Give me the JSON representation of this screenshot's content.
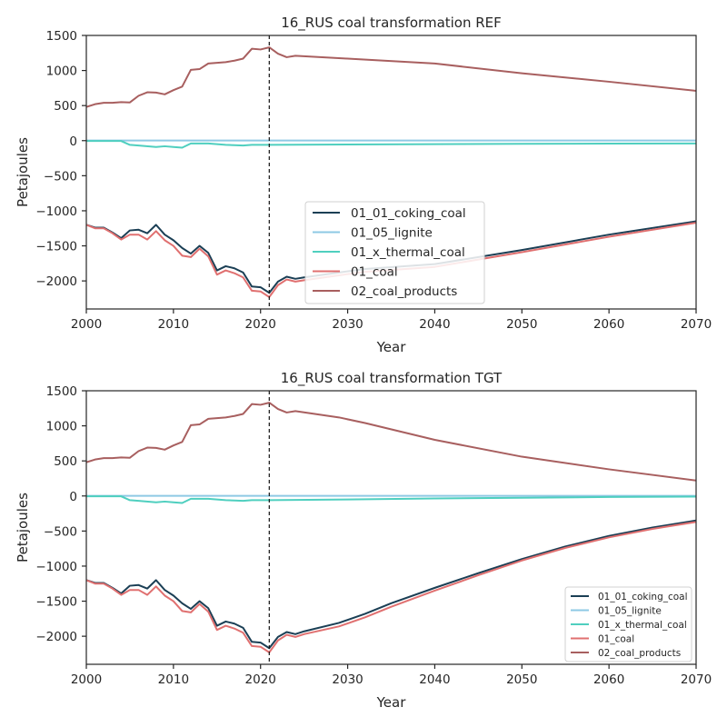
{
  "chart_data": [
    {
      "type": "line",
      "title": "16_RUS coal transformation REF",
      "xlabel": "Year",
      "ylabel": "Petajoules",
      "xlim": [
        2000,
        2070
      ],
      "ylim": [
        -2400,
        1500
      ],
      "xticks": [
        "2000",
        "2010",
        "2020",
        "2030",
        "2040",
        "2050",
        "2060",
        "2070"
      ],
      "yticks": [
        "−2000",
        "−1500",
        "−1000",
        "−500",
        "0",
        "500",
        "1000",
        "1500"
      ],
      "vline_x": 2021,
      "legend_position": "lower center",
      "legend": [
        "01_01_coking_coal",
        "01_05_lignite",
        "01_x_thermal_coal",
        "01_coal",
        "02_coal_products"
      ],
      "series": [
        {
          "name": "01_01_coking_coal",
          "color": "#1b3f55",
          "x": [
            2000,
            2001,
            2002,
            2003,
            2004,
            2005,
            2006,
            2007,
            2008,
            2009,
            2010,
            2011,
            2012,
            2013,
            2014,
            2015,
            2016,
            2017,
            2018,
            2019,
            2020,
            2021,
            2022,
            2023,
            2024,
            2025,
            2029,
            2032,
            2040,
            2050,
            2060,
            2070
          ],
          "y": [
            -1200,
            -1240,
            -1240,
            -1310,
            -1390,
            -1280,
            -1270,
            -1320,
            -1200,
            -1340,
            -1420,
            -1530,
            -1610,
            -1500,
            -1600,
            -1850,
            -1790,
            -1820,
            -1880,
            -2080,
            -2090,
            -2170,
            -2010,
            -1940,
            -1970,
            -1950,
            -1880,
            -1830,
            -1760,
            -1560,
            -1340,
            -1150
          ]
        },
        {
          "name": "01_05_lignite",
          "color": "#8ec9e4",
          "x": [
            2000,
            2021,
            2070
          ],
          "y": [
            2,
            2,
            2
          ]
        },
        {
          "name": "01_x_thermal_coal",
          "color": "#4fcfbf",
          "x": [
            2000,
            2004,
            2005,
            2006,
            2008,
            2009,
            2010,
            2011,
            2012,
            2014,
            2016,
            2017,
            2018,
            2019,
            2020,
            2021,
            2030,
            2040,
            2050,
            2060,
            2070
          ],
          "y": [
            -5,
            -5,
            -60,
            -70,
            -90,
            -80,
            -90,
            -100,
            -40,
            -40,
            -60,
            -65,
            -70,
            -60,
            -60,
            -60,
            -55,
            -50,
            -45,
            -42,
            -40
          ]
        },
        {
          "name": "01_coal",
          "color": "#e07070",
          "x": [
            2000,
            2001,
            2002,
            2003,
            2004,
            2005,
            2006,
            2007,
            2008,
            2009,
            2010,
            2011,
            2012,
            2013,
            2014,
            2015,
            2016,
            2017,
            2018,
            2019,
            2020,
            2021,
            2022,
            2023,
            2024,
            2025,
            2029,
            2032,
            2040,
            2050,
            2060,
            2070
          ],
          "y": [
            -1200,
            -1250,
            -1250,
            -1320,
            -1410,
            -1340,
            -1340,
            -1410,
            -1290,
            -1420,
            -1500,
            -1640,
            -1660,
            -1540,
            -1650,
            -1910,
            -1850,
            -1890,
            -1950,
            -2140,
            -2150,
            -2230,
            -2060,
            -1980,
            -2010,
            -1990,
            -1920,
            -1870,
            -1800,
            -1590,
            -1370,
            -1170
          ]
        },
        {
          "name": "02_coal_products",
          "color": "#a85f5f",
          "x": [
            2000,
            2001,
            2002,
            2003,
            2004,
            2005,
            2006,
            2007,
            2008,
            2009,
            2010,
            2011,
            2012,
            2013,
            2014,
            2015,
            2016,
            2017,
            2018,
            2019,
            2020,
            2021,
            2022,
            2023,
            2024,
            2030,
            2040,
            2050,
            2060,
            2070
          ],
          "y": [
            480,
            520,
            540,
            540,
            550,
            545,
            640,
            690,
            685,
            660,
            720,
            770,
            1010,
            1020,
            1100,
            1110,
            1120,
            1140,
            1170,
            1310,
            1300,
            1330,
            1240,
            1190,
            1210,
            1170,
            1100,
            960,
            840,
            710
          ]
        }
      ]
    },
    {
      "type": "line",
      "title": "16_RUS coal transformation TGT",
      "xlabel": "Year",
      "ylabel": "Petajoules",
      "xlim": [
        2000,
        2070
      ],
      "ylim": [
        -2400,
        1500
      ],
      "xticks": [
        "2000",
        "2010",
        "2020",
        "2030",
        "2040",
        "2050",
        "2060",
        "2070"
      ],
      "yticks": [
        "−2000",
        "−1500",
        "−1000",
        "−500",
        "0",
        "500",
        "1000",
        "1500"
      ],
      "vline_x": 2021,
      "legend_position": "lower right",
      "legend": [
        "01_01_coking_coal",
        "01_05_lignite",
        "01_x_thermal_coal",
        "01_coal",
        "02_coal_products"
      ],
      "series": [
        {
          "name": "01_01_coking_coal",
          "color": "#1b3f55",
          "x": [
            2000,
            2001,
            2002,
            2003,
            2004,
            2005,
            2006,
            2007,
            2008,
            2009,
            2010,
            2011,
            2012,
            2013,
            2014,
            2015,
            2016,
            2017,
            2018,
            2019,
            2020,
            2021,
            2022,
            2023,
            2024,
            2025,
            2029,
            2032,
            2035,
            2040,
            2045,
            2050,
            2055,
            2060,
            2065,
            2070
          ],
          "y": [
            -1200,
            -1240,
            -1240,
            -1310,
            -1390,
            -1280,
            -1270,
            -1320,
            -1200,
            -1340,
            -1420,
            -1530,
            -1610,
            -1500,
            -1600,
            -1850,
            -1790,
            -1820,
            -1880,
            -2080,
            -2090,
            -2170,
            -2010,
            -1940,
            -1970,
            -1930,
            -1810,
            -1680,
            -1530,
            -1310,
            -1100,
            -900,
            -720,
            -570,
            -450,
            -350
          ]
        },
        {
          "name": "01_05_lignite",
          "color": "#8ec9e4",
          "x": [
            2000,
            2021,
            2070
          ],
          "y": [
            2,
            2,
            2
          ]
        },
        {
          "name": "01_x_thermal_coal",
          "color": "#4fcfbf",
          "x": [
            2000,
            2004,
            2005,
            2006,
            2008,
            2009,
            2010,
            2011,
            2012,
            2014,
            2016,
            2017,
            2018,
            2019,
            2020,
            2021,
            2030,
            2040,
            2050,
            2060,
            2070
          ],
          "y": [
            -5,
            -5,
            -60,
            -70,
            -90,
            -80,
            -90,
            -100,
            -40,
            -40,
            -60,
            -65,
            -70,
            -60,
            -60,
            -60,
            -50,
            -35,
            -25,
            -15,
            -10
          ]
        },
        {
          "name": "01_coal",
          "color": "#e07070",
          "x": [
            2000,
            2001,
            2002,
            2003,
            2004,
            2005,
            2006,
            2007,
            2008,
            2009,
            2010,
            2011,
            2012,
            2013,
            2014,
            2015,
            2016,
            2017,
            2018,
            2019,
            2020,
            2021,
            2022,
            2023,
            2024,
            2025,
            2029,
            2032,
            2035,
            2040,
            2045,
            2050,
            2055,
            2060,
            2065,
            2070
          ],
          "y": [
            -1200,
            -1250,
            -1250,
            -1320,
            -1410,
            -1340,
            -1340,
            -1410,
            -1290,
            -1420,
            -1500,
            -1640,
            -1660,
            -1540,
            -1650,
            -1910,
            -1850,
            -1890,
            -1950,
            -2140,
            -2150,
            -2230,
            -2060,
            -1980,
            -2010,
            -1970,
            -1860,
            -1730,
            -1580,
            -1350,
            -1130,
            -920,
            -740,
            -590,
            -470,
            -370
          ]
        },
        {
          "name": "02_coal_products",
          "color": "#a85f5f",
          "x": [
            2000,
            2001,
            2002,
            2003,
            2004,
            2005,
            2006,
            2007,
            2008,
            2009,
            2010,
            2011,
            2012,
            2013,
            2014,
            2015,
            2016,
            2017,
            2018,
            2019,
            2020,
            2021,
            2022,
            2023,
            2024,
            2029,
            2032,
            2040,
            2050,
            2060,
            2070
          ],
          "y": [
            480,
            520,
            540,
            540,
            550,
            545,
            640,
            690,
            685,
            660,
            720,
            770,
            1010,
            1020,
            1100,
            1110,
            1120,
            1140,
            1170,
            1310,
            1300,
            1330,
            1240,
            1190,
            1210,
            1120,
            1040,
            800,
            560,
            380,
            220
          ]
        }
      ]
    }
  ]
}
